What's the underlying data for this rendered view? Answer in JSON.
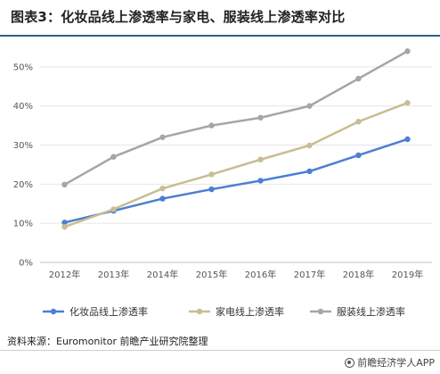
{
  "title": "图表3：化妆品线上渗透率与家电、服装线上渗透率对比",
  "source": "资料来源：Euromonitor 前瞻产业研究院整理",
  "brand": "前瞻经济学人APP",
  "chart_data": {
    "type": "line",
    "categories": [
      "2012年",
      "2013年",
      "2014年",
      "2015年",
      "2016年",
      "2017年",
      "2018年",
      "2019年"
    ],
    "yticks": [
      "0%",
      "10%",
      "20%",
      "30%",
      "40%",
      "50%"
    ],
    "ylim": [
      0,
      55
    ],
    "grid": true,
    "legend_position": "bottom",
    "series": [
      {
        "name": "化妆品线上渗透率",
        "color": "#4a7fd4",
        "values": [
          10.2,
          13.2,
          16.3,
          18.7,
          20.9,
          23.3,
          27.4,
          31.5
        ]
      },
      {
        "name": "家电线上渗透率",
        "color": "#c9bd91",
        "values": [
          9.1,
          13.6,
          18.9,
          22.5,
          26.3,
          29.9,
          36.0,
          40.8
        ]
      },
      {
        "name": "服装线上渗透率",
        "color": "#a6a6a6",
        "values": [
          19.9,
          27.0,
          32.0,
          35.0,
          37.0,
          40.0,
          47.0,
          54.0
        ]
      }
    ]
  }
}
